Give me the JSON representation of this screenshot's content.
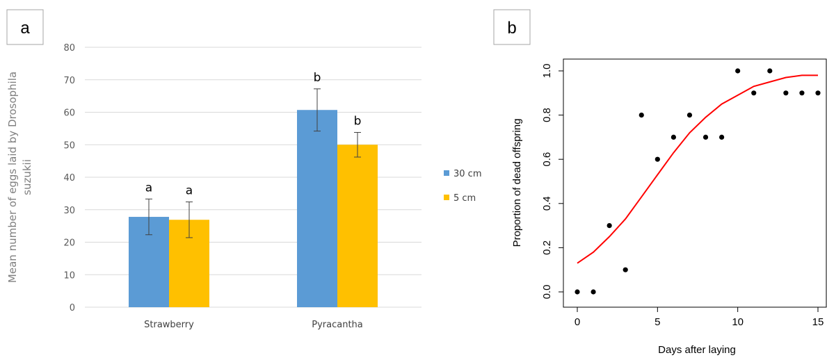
{
  "chart_data": [
    {
      "type": "bar",
      "panel": "a",
      "title": "",
      "xlabel": "",
      "ylabel_line1": "Mean number of eggs laid by Drosophila",
      "ylabel_line2": "suzukii",
      "ylim": [
        0,
        80
      ],
      "y_ticks": [
        0,
        10,
        20,
        30,
        40,
        50,
        60,
        70,
        80
      ],
      "grid": true,
      "legend_position": "right",
      "categories": [
        "Strawberry",
        "Pyracantha"
      ],
      "series": [
        {
          "name": "30 cm",
          "color": "#5B9BD5",
          "values": [
            27.8,
            60.7
          ],
          "errors": [
            5.5,
            6.5
          ],
          "letters": [
            "a",
            "b"
          ]
        },
        {
          "name": "5 cm",
          "color": "#FFC000",
          "values": [
            26.9,
            50.0
          ],
          "errors": [
            5.5,
            3.8
          ],
          "letters": [
            "a",
            "b"
          ]
        }
      ]
    },
    {
      "type": "scatter",
      "panel": "b",
      "title": "",
      "xlabel": "Days after laying",
      "ylabel": "Proportion of dead offspring",
      "xlim": [
        0,
        15
      ],
      "ylim": [
        0,
        1
      ],
      "x_ticks": [
        0,
        5,
        10,
        15
      ],
      "y_ticks": [
        "0.0",
        "0.2",
        "0.4",
        "0.6",
        "0.8",
        "1.0"
      ],
      "points": {
        "x": [
          0,
          1,
          2,
          3,
          4,
          5,
          6,
          7,
          8,
          9,
          10,
          11,
          12,
          13,
          14,
          15
        ],
        "y": [
          0.0,
          0.0,
          0.3,
          0.1,
          0.8,
          0.6,
          0.7,
          0.8,
          0.7,
          0.7,
          1.0,
          0.9,
          1.0,
          0.9,
          0.9,
          0.9
        ]
      },
      "fitted_curve": {
        "color": "#ff0000",
        "x": [
          0,
          1,
          2,
          3,
          4,
          5,
          6,
          7,
          8,
          9,
          10,
          11,
          12,
          13,
          14,
          15
        ],
        "y": [
          0.13,
          0.18,
          0.25,
          0.33,
          0.43,
          0.53,
          0.63,
          0.72,
          0.79,
          0.85,
          0.89,
          0.93,
          0.95,
          0.97,
          0.98,
          0.98
        ]
      }
    }
  ],
  "panels": {
    "a_label": "a",
    "b_label": "b"
  }
}
